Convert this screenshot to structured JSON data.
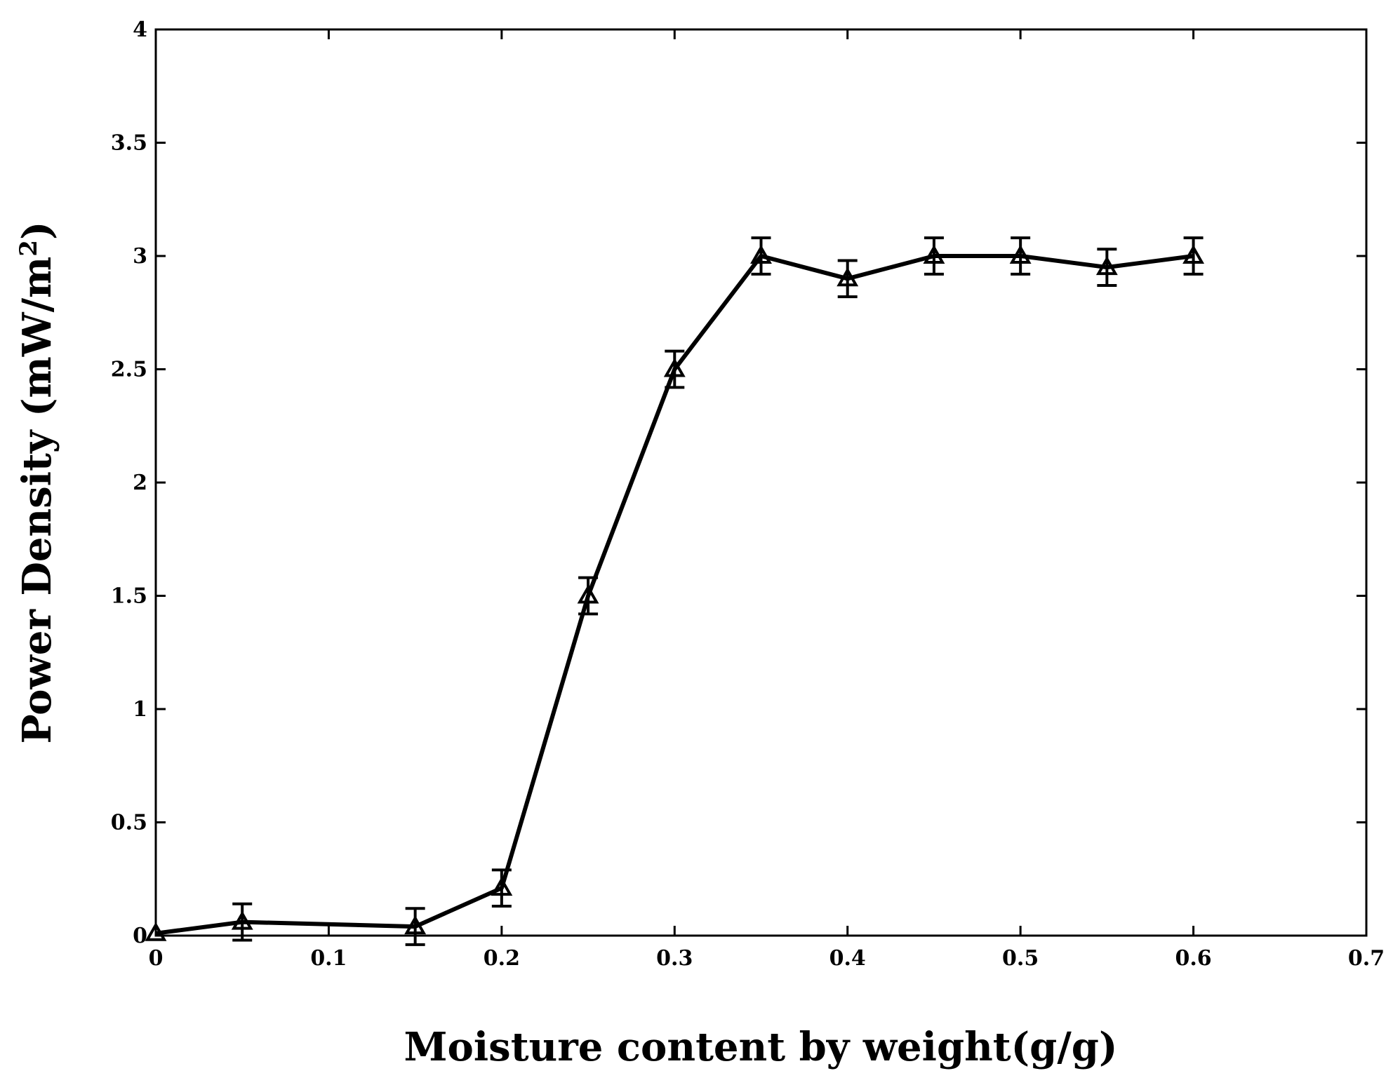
{
  "chart_data": {
    "type": "line",
    "xlabel": "Moisture content by weight(g/g)",
    "ylabel": "Power Density (mW/m",
    "ylabel_sup": "2",
    "ylabel_suffix": ")",
    "xlim": [
      0,
      0.7
    ],
    "ylim": [
      0,
      4
    ],
    "xticks": [
      0,
      0.1,
      0.2,
      0.3,
      0.4,
      0.5,
      0.6,
      0.7
    ],
    "xtick_labels": [
      "0",
      "0.1",
      "0.2",
      "0.3",
      "0.4",
      "0.5",
      "0.6",
      "0.7"
    ],
    "yticks": [
      0,
      0.5,
      1,
      1.5,
      2,
      2.5,
      3,
      3.5,
      4
    ],
    "ytick_labels": [
      "0",
      "0.5",
      "1",
      "1.5",
      "2",
      "2.5",
      "3",
      "3.5",
      "4"
    ],
    "grid": false,
    "legend": "none",
    "series": [
      {
        "marker": "triangle-open",
        "color": "#000000",
        "x": [
          0,
          0.05,
          0.15,
          0.2,
          0.25,
          0.3,
          0.35,
          0.4,
          0.45,
          0.5,
          0.55,
          0.6
        ],
        "y": [
          0.01,
          0.06,
          0.04,
          0.21,
          1.5,
          2.5,
          3.0,
          2.9,
          3.0,
          3.0,
          2.95,
          3.0
        ],
        "err": [
          0,
          0.08,
          0.08,
          0.08,
          0.08,
          0.08,
          0.08,
          0.08,
          0.08,
          0.08,
          0.08,
          0.08
        ]
      }
    ]
  }
}
